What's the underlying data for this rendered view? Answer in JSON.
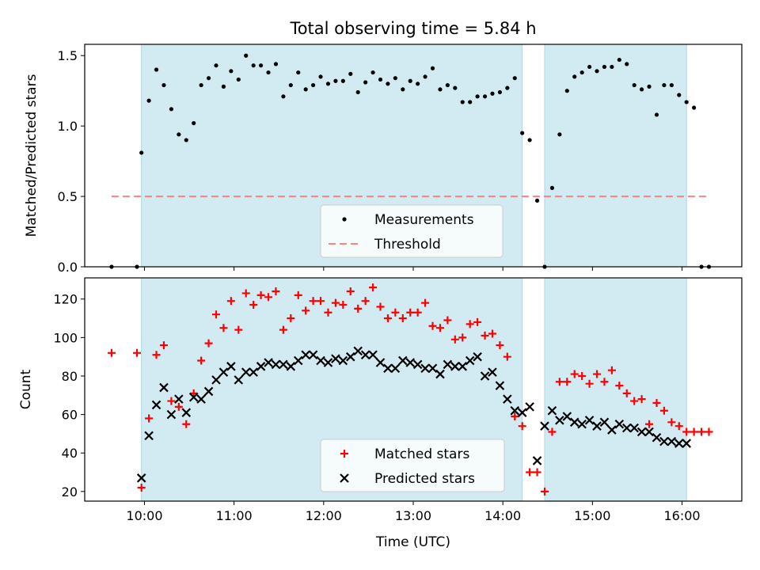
{
  "title": "Total observing time = 5.84 h",
  "xlabel": "Time (UTC)",
  "colors": {
    "shade": "#add8e6",
    "measurement": "#000000",
    "threshold": "#ff8080",
    "matched": "#ff0000",
    "predicted": "#000000"
  },
  "chart_data": [
    {
      "type": "scatter",
      "ylabel": "Matched/Predicted stars",
      "xlim": [
        "9:20",
        "16:40"
      ],
      "ylim": [
        0,
        1.58
      ],
      "yticks": [
        0.0,
        0.5,
        1.0,
        1.5
      ],
      "ytick_labels": [
        "0.0",
        "0.5",
        "1.0",
        "1.5"
      ],
      "xticks": [
        "10:00",
        "11:00",
        "12:00",
        "13:00",
        "14:00",
        "15:00",
        "16:00"
      ],
      "shaded_intervals": [
        [
          "9:58",
          "14:13"
        ],
        [
          "14:28",
          "16:03"
        ]
      ],
      "threshold": 0.5,
      "threshold_x": [
        "9:38",
        "16:18"
      ],
      "legend": {
        "position": "lower center",
        "entries": [
          "Measurements",
          "Threshold"
        ]
      },
      "series": [
        {
          "name": "Measurements",
          "x": [
            "9:38",
            "9:55",
            "9:58",
            "10:03",
            "10:08",
            "10:13",
            "10:18",
            "10:23",
            "10:28",
            "10:33",
            "10:38",
            "10:43",
            "10:48",
            "10:53",
            "10:58",
            "11:03",
            "11:08",
            "11:13",
            "11:18",
            "11:23",
            "11:28",
            "11:33",
            "11:38",
            "11:43",
            "11:48",
            "11:53",
            "11:58",
            "12:03",
            "12:08",
            "12:13",
            "12:18",
            "12:23",
            "12:28",
            "12:33",
            "12:38",
            "12:43",
            "12:48",
            "12:53",
            "12:58",
            "13:03",
            "13:08",
            "13:13",
            "13:18",
            "13:23",
            "13:28",
            "13:33",
            "13:38",
            "13:43",
            "13:48",
            "13:53",
            "13:58",
            "14:03",
            "14:08",
            "14:13",
            "14:18",
            "14:23",
            "14:28",
            "14:33",
            "14:38",
            "14:43",
            "14:48",
            "14:53",
            "14:58",
            "15:03",
            "15:08",
            "15:13",
            "15:18",
            "15:23",
            "15:28",
            "15:33",
            "15:38",
            "15:43",
            "15:48",
            "15:53",
            "15:58",
            "16:03",
            "16:08",
            "16:13",
            "16:18"
          ],
          "y": [
            0.0,
            0.0,
            0.81,
            1.18,
            1.4,
            1.29,
            1.12,
            0.94,
            0.9,
            1.02,
            1.29,
            1.34,
            1.43,
            1.28,
            1.39,
            1.33,
            1.5,
            1.43,
            1.43,
            1.38,
            1.44,
            1.21,
            1.29,
            1.38,
            1.26,
            1.29,
            1.35,
            1.3,
            1.32,
            1.32,
            1.37,
            1.24,
            1.31,
            1.38,
            1.33,
            1.3,
            1.34,
            1.26,
            1.32,
            1.3,
            1.35,
            1.41,
            1.26,
            1.29,
            1.27,
            1.17,
            1.17,
            1.21,
            1.21,
            1.23,
            1.24,
            1.27,
            1.34,
            0.95,
            0.9,
            0.47,
            0.0,
            0.56,
            0.94,
            1.25,
            1.35,
            1.38,
            1.42,
            1.39,
            1.42,
            1.42,
            1.47,
            1.44,
            1.29,
            1.26,
            1.28,
            1.08,
            1.29,
            1.29,
            1.22,
            1.17,
            1.13,
            0.0,
            0.0
          ]
        }
      ]
    },
    {
      "type": "scatter",
      "ylabel": "Count",
      "xlabel": "Time (UTC)",
      "xlim": [
        "9:20",
        "16:40"
      ],
      "ylim": [
        15,
        131
      ],
      "yticks": [
        20,
        40,
        60,
        80,
        100,
        120
      ],
      "xticks": [
        "10:00",
        "11:00",
        "12:00",
        "13:00",
        "14:00",
        "15:00",
        "16:00"
      ],
      "shaded_intervals": [
        [
          "9:58",
          "14:13"
        ],
        [
          "14:28",
          "16:03"
        ]
      ],
      "legend": {
        "position": "lower center",
        "entries": [
          "Matched stars",
          "Predicted stars"
        ]
      },
      "series": [
        {
          "name": "Matched stars",
          "x": [
            "9:38",
            "9:55",
            "9:58",
            "10:03",
            "10:08",
            "10:13",
            "10:18",
            "10:23",
            "10:28",
            "10:33",
            "10:38",
            "10:43",
            "10:48",
            "10:53",
            "10:58",
            "11:03",
            "11:08",
            "11:13",
            "11:18",
            "11:23",
            "11:28",
            "11:33",
            "11:38",
            "11:43",
            "11:48",
            "11:53",
            "11:58",
            "12:03",
            "12:08",
            "12:13",
            "12:18",
            "12:23",
            "12:28",
            "12:33",
            "12:38",
            "12:43",
            "12:48",
            "12:53",
            "12:58",
            "13:03",
            "13:08",
            "13:13",
            "13:18",
            "13:23",
            "13:28",
            "13:33",
            "13:38",
            "13:43",
            "13:48",
            "13:53",
            "13:58",
            "14:03",
            "14:08",
            "14:13",
            "14:18",
            "14:23",
            "14:28",
            "14:33",
            "14:38",
            "14:43",
            "14:48",
            "14:53",
            "14:58",
            "15:03",
            "15:08",
            "15:13",
            "15:18",
            "15:23",
            "15:28",
            "15:33",
            "15:38",
            "15:43",
            "15:48",
            "15:53",
            "15:58",
            "16:03",
            "16:08",
            "16:13",
            "16:18"
          ],
          "y": [
            92,
            92,
            22,
            58,
            91,
            96,
            67,
            64,
            55,
            71,
            88,
            97,
            112,
            105,
            119,
            104,
            123,
            117,
            122,
            121,
            124,
            104,
            110,
            122,
            114,
            119,
            119,
            113,
            118,
            117,
            124,
            115,
            119,
            126,
            116,
            110,
            113,
            110,
            113,
            113,
            118,
            106,
            105,
            109,
            99,
            100,
            107,
            108,
            101,
            102,
            96,
            90,
            59,
            54,
            30,
            30,
            20,
            51,
            77,
            77,
            81,
            80,
            76,
            81,
            77,
            83,
            75,
            71,
            67,
            68,
            55,
            66,
            62,
            56,
            54,
            51,
            51,
            51,
            51
          ]
        },
        {
          "name": "Predicted stars",
          "x": [
            "9:58",
            "10:03",
            "10:08",
            "10:13",
            "10:18",
            "10:23",
            "10:28",
            "10:33",
            "10:38",
            "10:43",
            "10:48",
            "10:53",
            "10:58",
            "11:03",
            "11:08",
            "11:13",
            "11:18",
            "11:23",
            "11:28",
            "11:33",
            "11:38",
            "11:43",
            "11:48",
            "11:53",
            "11:58",
            "12:03",
            "12:08",
            "12:13",
            "12:18",
            "12:23",
            "12:28",
            "12:33",
            "12:38",
            "12:43",
            "12:48",
            "12:53",
            "12:58",
            "13:03",
            "13:08",
            "13:13",
            "13:18",
            "13:23",
            "13:28",
            "13:33",
            "13:38",
            "13:43",
            "13:48",
            "13:53",
            "13:58",
            "14:03",
            "14:08",
            "14:13",
            "14:18",
            "14:23",
            "14:28",
            "14:33",
            "14:38",
            "14:43",
            "14:48",
            "14:53",
            "14:58",
            "15:03",
            "15:08",
            "15:13",
            "15:18",
            "15:23",
            "15:28",
            "15:33",
            "15:38",
            "15:43",
            "15:48",
            "15:53",
            "15:58",
            "16:03"
          ],
          "y": [
            27,
            49,
            65,
            74,
            60,
            68,
            61,
            69,
            68,
            72,
            78,
            82,
            85,
            78,
            82,
            82,
            85,
            87,
            86,
            86,
            85,
            88,
            91,
            91,
            88,
            87,
            89,
            88,
            90,
            93,
            91,
            91,
            87,
            84,
            84,
            88,
            87,
            86,
            84,
            84,
            81,
            86,
            85,
            85,
            88,
            90,
            80,
            82,
            75,
            68,
            62,
            61,
            64,
            36,
            54,
            62,
            57,
            59,
            56,
            55,
            57,
            54,
            56,
            52,
            55,
            53,
            53,
            51,
            51,
            48,
            46,
            46,
            45,
            45
          ]
        }
      ]
    }
  ]
}
